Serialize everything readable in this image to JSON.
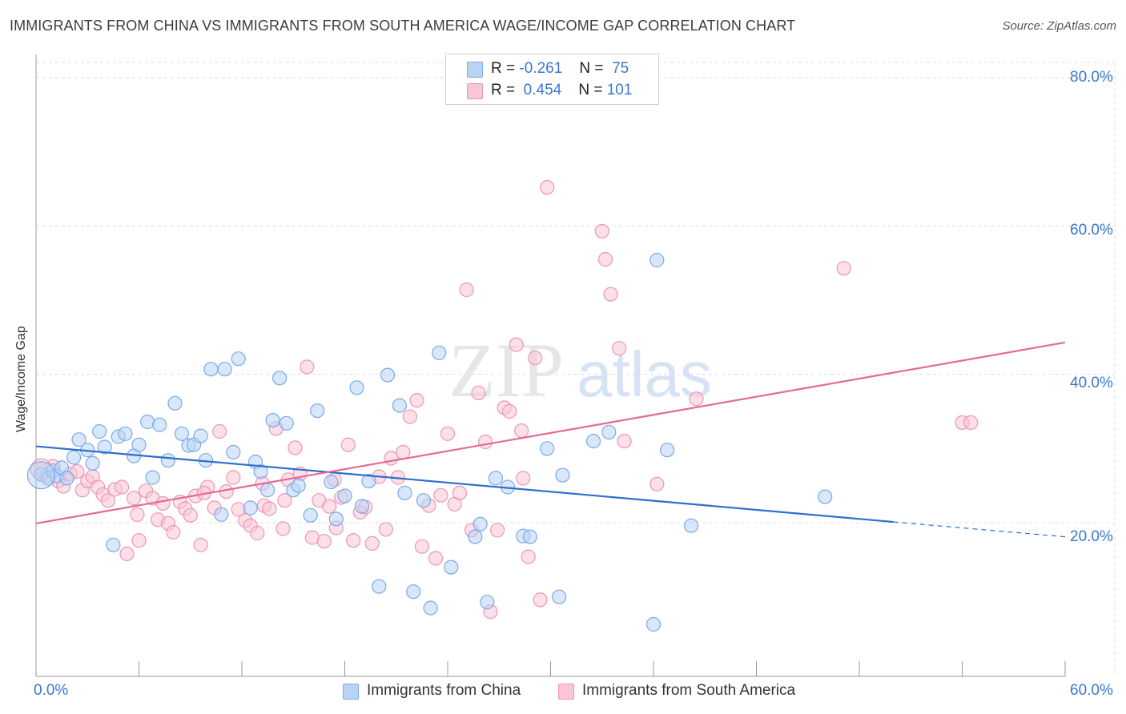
{
  "header": {
    "title": "IMMIGRANTS FROM CHINA VS IMMIGRANTS FROM SOUTH AMERICA WAGE/INCOME GAP CORRELATION CHART",
    "source": "Source: ZipAtlas.com"
  },
  "legend": {
    "china": {
      "r_label": "R =",
      "r_value": "-0.261",
      "n_label": "N =",
      "n_value": "75"
    },
    "south_america": {
      "r_label": "R =",
      "r_value": "0.454",
      "n_label": "N =",
      "n_value": "101"
    }
  },
  "bottom_legend": {
    "china": "Immigrants from China",
    "south_america": "Immigrants from South America"
  },
  "axis": {
    "ylabel": "Wage/Income Gap",
    "x_min_label": "0.0%",
    "x_max_label": "60.0%",
    "y_ticks": [
      "80.0%",
      "60.0%",
      "40.0%",
      "20.0%"
    ]
  },
  "colors": {
    "china_fill": "#b8d4f5",
    "china_stroke": "#7aaae8",
    "china_line": "#2e6fcc",
    "sa_fill": "#fac6d6",
    "sa_stroke": "#ee95b4",
    "sa_line": "#e46a96",
    "tick_text": "#3a78d0",
    "grid": "#dddddd"
  },
  "chart_data": {
    "type": "scatter",
    "xlabel": "",
    "ylabel": "Wage/Income Gap",
    "xlim": [
      0,
      60
    ],
    "ylim": [
      0,
      80
    ],
    "grid": true,
    "legend_placement": "top-center",
    "series": [
      {
        "name": "Immigrants from China",
        "trend": {
          "x": [
            0,
            50
          ],
          "y": [
            30.3,
            20.1
          ],
          "dashed_to_x": 60,
          "dashed_to_y": 18.1
        },
        "points": [
          [
            0.3,
            26.5
          ],
          [
            0.7,
            26.0
          ],
          [
            1.0,
            27.0
          ],
          [
            1.2,
            26.3
          ],
          [
            1.5,
            27.4
          ],
          [
            1.8,
            26.0
          ],
          [
            2.2,
            28.8
          ],
          [
            2.5,
            31.2
          ],
          [
            3.0,
            29.8
          ],
          [
            3.3,
            28.0
          ],
          [
            3.7,
            32.3
          ],
          [
            4.0,
            30.2
          ],
          [
            4.5,
            17.0
          ],
          [
            4.8,
            31.6
          ],
          [
            5.2,
            32.0
          ],
          [
            5.7,
            29.0
          ],
          [
            6.0,
            30.5
          ],
          [
            6.5,
            33.6
          ],
          [
            6.8,
            26.1
          ],
          [
            7.2,
            33.2
          ],
          [
            7.7,
            28.4
          ],
          [
            8.1,
            36.1
          ],
          [
            8.5,
            32.0
          ],
          [
            8.9,
            30.4
          ],
          [
            9.2,
            30.5
          ],
          [
            9.6,
            31.7
          ],
          [
            9.9,
            28.4
          ],
          [
            10.2,
            40.7
          ],
          [
            10.8,
            21.1
          ],
          [
            11.0,
            40.7
          ],
          [
            11.5,
            29.5
          ],
          [
            11.8,
            42.1
          ],
          [
            12.5,
            22.0
          ],
          [
            12.8,
            28.2
          ],
          [
            13.1,
            26.9
          ],
          [
            13.5,
            24.4
          ],
          [
            13.8,
            33.8
          ],
          [
            14.2,
            39.5
          ],
          [
            14.6,
            33.4
          ],
          [
            15.0,
            24.4
          ],
          [
            15.3,
            25.0
          ],
          [
            16.0,
            21.0
          ],
          [
            16.4,
            35.1
          ],
          [
            17.2,
            25.5
          ],
          [
            17.5,
            20.5
          ],
          [
            18.0,
            23.6
          ],
          [
            18.7,
            38.2
          ],
          [
            19.0,
            22.2
          ],
          [
            19.4,
            25.6
          ],
          [
            20.0,
            11.4
          ],
          [
            20.5,
            39.9
          ],
          [
            21.2,
            35.8
          ],
          [
            21.5,
            24.0
          ],
          [
            22.0,
            10.7
          ],
          [
            22.6,
            23.0
          ],
          [
            23.0,
            8.5
          ],
          [
            23.5,
            42.9
          ],
          [
            24.2,
            14.0
          ],
          [
            25.6,
            18.1
          ],
          [
            25.9,
            19.8
          ],
          [
            26.3,
            9.3
          ],
          [
            26.8,
            26.0
          ],
          [
            27.5,
            24.8
          ],
          [
            28.4,
            18.2
          ],
          [
            28.8,
            18.1
          ],
          [
            29.8,
            30.0
          ],
          [
            30.5,
            10.0
          ],
          [
            30.7,
            26.4
          ],
          [
            32.5,
            31.0
          ],
          [
            33.4,
            32.2
          ],
          [
            36.2,
            55.4
          ],
          [
            36.8,
            29.8
          ],
          [
            38.2,
            19.6
          ],
          [
            36.0,
            6.3
          ],
          [
            46.0,
            23.5
          ]
        ]
      },
      {
        "name": "Immigrants from South America",
        "trend": {
          "x": [
            0,
            60
          ],
          "y": [
            19.9,
            44.3
          ]
        },
        "points": [
          [
            0.3,
            27.3
          ],
          [
            0.6,
            26.3
          ],
          [
            1.0,
            27.6
          ],
          [
            1.3,
            25.6
          ],
          [
            1.6,
            24.9
          ],
          [
            2.0,
            26.6
          ],
          [
            2.4,
            26.9
          ],
          [
            2.7,
            24.4
          ],
          [
            3.0,
            25.6
          ],
          [
            3.3,
            26.2
          ],
          [
            3.6,
            24.8
          ],
          [
            3.9,
            23.8
          ],
          [
            4.2,
            23.0
          ],
          [
            4.6,
            24.5
          ],
          [
            5.0,
            24.8
          ],
          [
            5.3,
            15.8
          ],
          [
            5.7,
            23.3
          ],
          [
            6.0,
            17.6
          ],
          [
            6.4,
            24.3
          ],
          [
            6.8,
            23.3
          ],
          [
            7.1,
            20.4
          ],
          [
            7.4,
            22.6
          ],
          [
            7.7,
            19.9
          ],
          [
            8.0,
            18.7
          ],
          [
            8.4,
            22.8
          ],
          [
            8.7,
            21.9
          ],
          [
            9.0,
            21.0
          ],
          [
            9.3,
            23.6
          ],
          [
            9.6,
            17.0
          ],
          [
            10.0,
            24.8
          ],
          [
            10.4,
            22.0
          ],
          [
            10.7,
            32.3
          ],
          [
            11.1,
            24.2
          ],
          [
            11.5,
            26.1
          ],
          [
            11.8,
            21.8
          ],
          [
            12.2,
            20.3
          ],
          [
            12.5,
            19.6
          ],
          [
            12.9,
            18.6
          ],
          [
            13.3,
            22.3
          ],
          [
            13.6,
            21.9
          ],
          [
            14.0,
            32.7
          ],
          [
            14.4,
            19.2
          ],
          [
            14.7,
            25.8
          ],
          [
            15.1,
            30.1
          ],
          [
            15.4,
            26.6
          ],
          [
            15.8,
            41.0
          ],
          [
            16.1,
            18.0
          ],
          [
            16.5,
            23.0
          ],
          [
            16.8,
            17.5
          ],
          [
            17.1,
            22.2
          ],
          [
            17.5,
            19.3
          ],
          [
            17.8,
            23.4
          ],
          [
            18.2,
            30.5
          ],
          [
            18.5,
            17.6
          ],
          [
            18.9,
            21.4
          ],
          [
            19.2,
            22.1
          ],
          [
            19.6,
            17.2
          ],
          [
            20.0,
            26.2
          ],
          [
            20.4,
            19.1
          ],
          [
            20.7,
            28.7
          ],
          [
            21.1,
            26.1
          ],
          [
            21.4,
            29.5
          ],
          [
            21.8,
            34.3
          ],
          [
            22.2,
            36.5
          ],
          [
            22.5,
            16.8
          ],
          [
            22.9,
            22.3
          ],
          [
            23.3,
            15.2
          ],
          [
            23.6,
            23.7
          ],
          [
            24.0,
            32.0
          ],
          [
            24.4,
            22.5
          ],
          [
            24.7,
            24.0
          ],
          [
            25.1,
            51.4
          ],
          [
            25.4,
            19.0
          ],
          [
            25.8,
            37.5
          ],
          [
            26.2,
            30.9
          ],
          [
            26.5,
            8.0
          ],
          [
            26.9,
            19.0
          ],
          [
            27.3,
            35.5
          ],
          [
            27.6,
            35.0
          ],
          [
            28.0,
            44.0
          ],
          [
            28.3,
            32.4
          ],
          [
            28.7,
            15.4
          ],
          [
            29.1,
            42.2
          ],
          [
            29.4,
            9.6
          ],
          [
            29.8,
            65.2
          ],
          [
            33.0,
            59.3
          ],
          [
            33.2,
            55.5
          ],
          [
            33.5,
            50.8
          ],
          [
            34.0,
            43.5
          ],
          [
            34.3,
            31.0
          ],
          [
            36.2,
            25.2
          ],
          [
            38.5,
            36.7
          ],
          [
            47.1,
            54.3
          ],
          [
            54.0,
            33.5
          ],
          [
            54.5,
            33.5
          ],
          [
            28.4,
            26.0
          ],
          [
            17.4,
            25.8
          ],
          [
            14.5,
            23.0
          ],
          [
            13.2,
            25.3
          ],
          [
            9.8,
            24.0
          ],
          [
            5.9,
            21.1
          ]
        ]
      }
    ]
  }
}
